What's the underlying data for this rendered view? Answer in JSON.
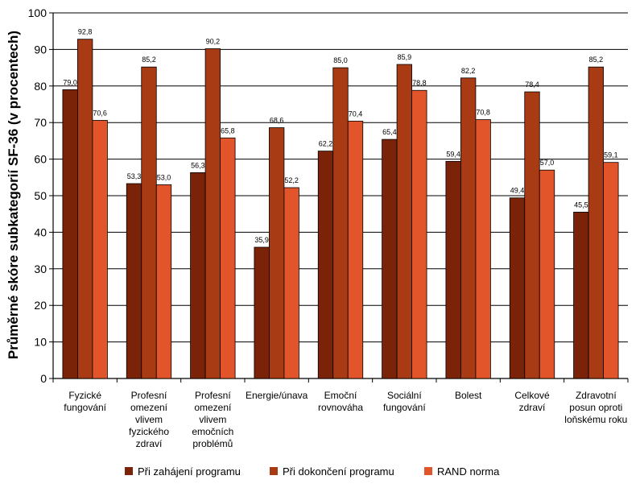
{
  "chart_data": {
    "type": "bar",
    "ylabel": "Průměrné skóre subkategorií SF-36 (v procentech)",
    "ylim": [
      0,
      100
    ],
    "yticks": [
      0,
      10,
      20,
      30,
      40,
      50,
      60,
      70,
      80,
      90,
      100
    ],
    "grid": true,
    "legend_position": "bottom",
    "categories": [
      [
        "Fyzické",
        "fungování"
      ],
      [
        "Profesní",
        "omezení",
        "vlivem",
        "fyzického",
        "zdraví"
      ],
      [
        "Profesní",
        "omezení",
        "vlivem",
        "emočních",
        "problémů"
      ],
      [
        "Energie/únava"
      ],
      [
        "Emoční",
        "rovnováha"
      ],
      [
        "Sociální",
        "fungování"
      ],
      [
        "Bolest"
      ],
      [
        "Celkové",
        "zdraví"
      ],
      [
        "Zdravotní",
        "posun oproti",
        "loňskému roku"
      ]
    ],
    "series": [
      {
        "name": "Při zahájení programu",
        "color": "#7a2308",
        "values": [
          79.0,
          53.3,
          56.3,
          35.9,
          62.2,
          65.4,
          59.4,
          49.4,
          45.5
        ],
        "labels": [
          "79,0",
          "53,3",
          "56,3",
          "35,9",
          "62,2",
          "65,4",
          "59,4",
          "49,4",
          "45,5"
        ]
      },
      {
        "name": "Při dokončení programu",
        "color": "#a83a14",
        "values": [
          92.8,
          85.2,
          90.2,
          68.6,
          85.0,
          85.9,
          82.2,
          78.4,
          85.2
        ],
        "labels": [
          "92,8",
          "85,2",
          "90,2",
          "68,6",
          "85,0",
          "85,9",
          "82,2",
          "78,4",
          "85,2"
        ]
      },
      {
        "name": "RAND norma",
        "color": "#e2542a",
        "values": [
          70.6,
          53.0,
          65.8,
          52.2,
          70.4,
          78.8,
          70.8,
          57.0,
          59.1
        ],
        "labels": [
          "70,6",
          "53,0",
          "65,8",
          "52,2",
          "70,4",
          "78,8",
          "70,8",
          "57,0",
          "59,1"
        ]
      }
    ]
  }
}
